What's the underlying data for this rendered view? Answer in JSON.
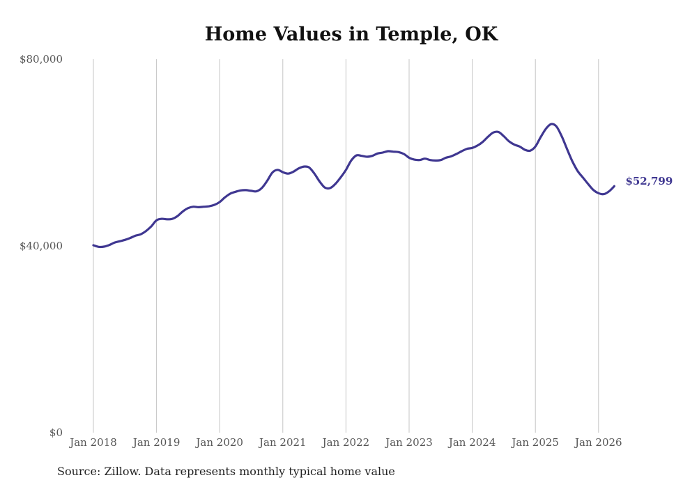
{
  "chart_data": {
    "type": "line",
    "title": "Home Values in Temple, OK",
    "xlabel": "",
    "ylabel": "",
    "ylim": [
      0,
      80000
    ],
    "yticks": [
      {
        "value": 0,
        "label": "$0"
      },
      {
        "value": 40000,
        "label": "$40,000"
      },
      {
        "value": 80000,
        "label": "$80,000"
      }
    ],
    "xticks": [
      {
        "value": 2018,
        "label": "Jan 2018"
      },
      {
        "value": 2019,
        "label": "Jan 2019"
      },
      {
        "value": 2020,
        "label": "Jan 2020"
      },
      {
        "value": 2021,
        "label": "Jan 2021"
      },
      {
        "value": 2022,
        "label": "Jan 2022"
      },
      {
        "value": 2023,
        "label": "Jan 2023"
      },
      {
        "value": 2024,
        "label": "Jan 2024"
      },
      {
        "value": 2025,
        "label": "Jan 2025"
      },
      {
        "value": 2026,
        "label": "Jan 2026"
      }
    ],
    "xlim": [
      2018,
      2026.25
    ],
    "grid": "vertical",
    "series": [
      {
        "name": "Typical home value",
        "color": "#3f3791",
        "start": "Jan 2018",
        "frequency": "monthly",
        "values": [
          40150,
          39800,
          39850,
          40200,
          40700,
          41000,
          41300,
          41700,
          42200,
          42500,
          43200,
          44200,
          45500,
          45800,
          45700,
          45800,
          46400,
          47400,
          48100,
          48400,
          48300,
          48400,
          48500,
          48800,
          49400,
          50400,
          51200,
          51600,
          51900,
          51950,
          51800,
          51700,
          52400,
          53900,
          55700,
          56300,
          55800,
          55500,
          55900,
          56600,
          57000,
          56800,
          55500,
          53800,
          52500,
          52400,
          53300,
          54700,
          56300,
          58300,
          59400,
          59300,
          59100,
          59300,
          59800,
          60000,
          60300,
          60200,
          60100,
          59700,
          58900,
          58500,
          58400,
          58700,
          58400,
          58300,
          58400,
          58900,
          59200,
          59700,
          60300,
          60800,
          61000,
          61500,
          62300,
          63400,
          64300,
          64400,
          63500,
          62400,
          61700,
          61300,
          60600,
          60400,
          61300,
          63300,
          65100,
          66100,
          65600,
          63500,
          60800,
          58200,
          56100,
          54700,
          53300,
          52000,
          51300,
          51100,
          51700,
          52799
        ]
      }
    ],
    "annotations": [
      {
        "text": "$52,799",
        "at": "Mar 2026",
        "value": 52799,
        "color": "#3f3791"
      }
    ],
    "source": "Source: Zillow. Data represents monthly typical home value"
  }
}
